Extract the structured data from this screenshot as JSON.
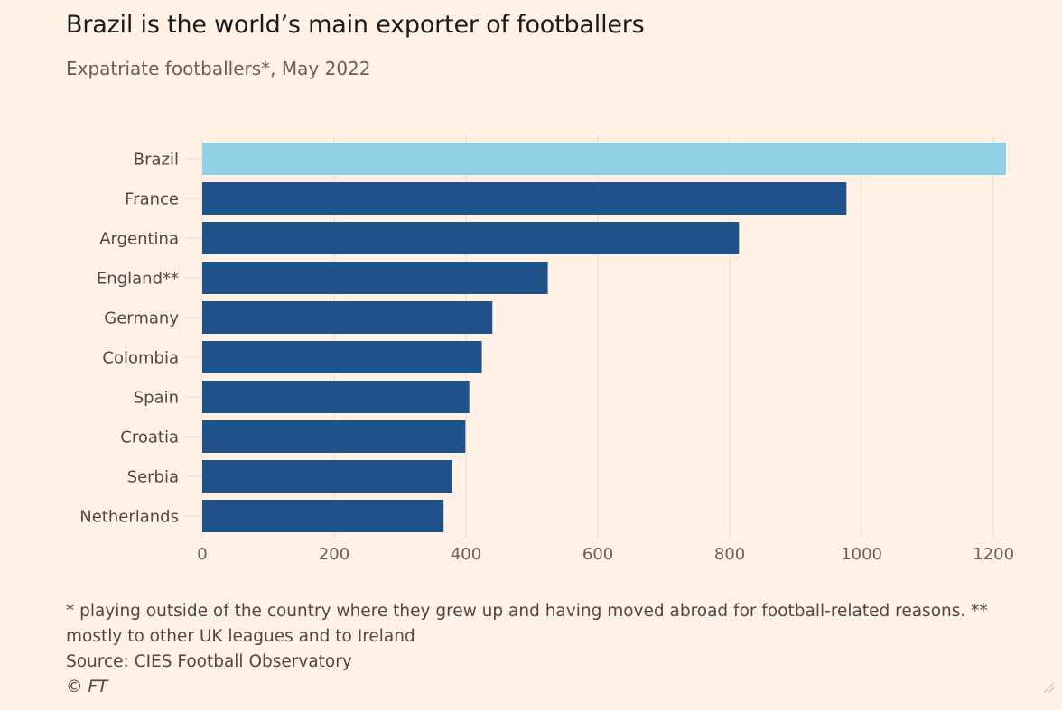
{
  "colors": {
    "background": "#fff1e5",
    "highlight_bar": "#8fd0e6",
    "bar": "#1f5289",
    "grid": "#e6d9ce",
    "axis_text": "#66605c",
    "title": "#1a1a1a"
  },
  "header": {
    "title": "Brazil is the world’s main exporter of footballers",
    "subtitle": "Expatriate footballers*, May 2022"
  },
  "chart_data": {
    "type": "bar",
    "orientation": "horizontal",
    "categories": [
      "Brazil",
      "France",
      "Argentina",
      "England**",
      "Germany",
      "Colombia",
      "Spain",
      "Croatia",
      "Serbia",
      "Netherlands"
    ],
    "values": [
      1219,
      977,
      814,
      524,
      440,
      424,
      405,
      399,
      379,
      366
    ],
    "highlighted_category": "Brazil",
    "xlim": [
      0,
      1219
    ],
    "xticks": [
      0,
      200,
      400,
      600,
      800,
      1000,
      1200
    ],
    "grid": "vertical",
    "legend": "none"
  },
  "footer": {
    "note_line1": "* playing outside of the country where they grew up and having moved abroad for football-related reasons. **",
    "note_line2": "mostly to other UK leagues and to Ireland",
    "source": "Source: CIES Football Observatory",
    "credit": "© FT"
  },
  "icons": {
    "resize": "resize-grip-icon"
  }
}
